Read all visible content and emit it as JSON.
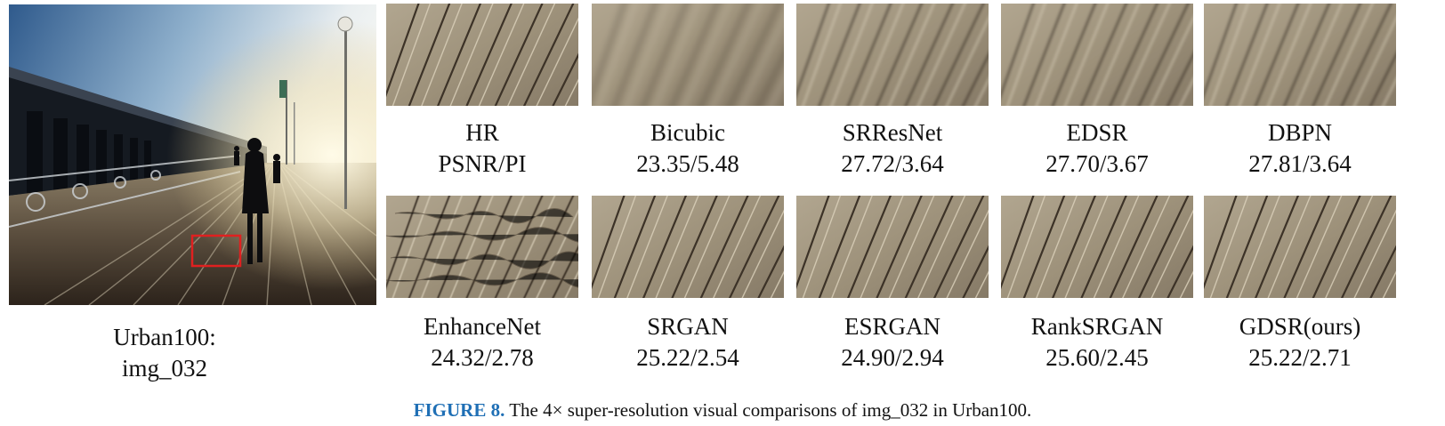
{
  "main_image": {
    "label_line1": "Urban100:",
    "label_line2": "img_032"
  },
  "panels_row1": [
    {
      "name": "HR",
      "score": "PSNR/PI",
      "style": "sharp"
    },
    {
      "name": "Bicubic",
      "score": "23.35/5.48",
      "style": "blurry"
    },
    {
      "name": "SRResNet",
      "score": "27.72/3.64",
      "style": "soft"
    },
    {
      "name": "EDSR",
      "score": "27.70/3.67",
      "style": "soft"
    },
    {
      "name": "DBPN",
      "score": "27.81/3.64",
      "style": "soft"
    }
  ],
  "panels_row2": [
    {
      "name": "EnhanceNet",
      "score": "24.32/2.78",
      "style": "noisy"
    },
    {
      "name": "SRGAN",
      "score": "25.22/2.54",
      "style": "sharp"
    },
    {
      "name": "ESRGAN",
      "score": "24.90/2.94",
      "style": "sharp"
    },
    {
      "name": "RankSRGAN",
      "score": "25.60/2.45",
      "style": "sharp"
    },
    {
      "name": "GDSR(ours)",
      "score": "25.22/2.71",
      "style": "sharp"
    }
  ],
  "caption": {
    "label": "FIGURE 8.",
    "text": " The 4× super-resolution visual comparisons of img_032 in Urban100."
  },
  "colors": {
    "caption_label": "#1f6fb5",
    "highlight_box": "#e02020"
  }
}
